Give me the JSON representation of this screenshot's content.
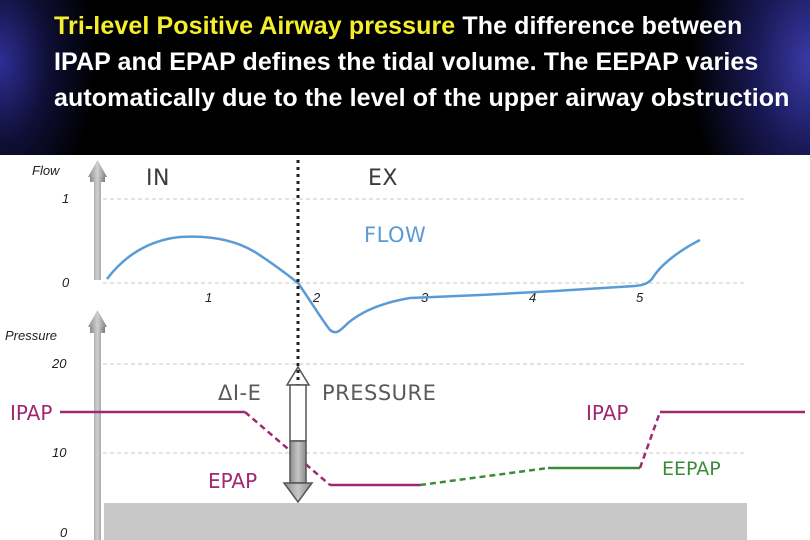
{
  "slide": {
    "title_highlight": "Tri-level Positive Airway pressure",
    "title_rest": " The difference between IPAP and EPAP defines the tidal volume. The EEPAP varies automatically due to the level of the upper airway obstruction"
  },
  "figure": {
    "flow_axis_label": "Flow",
    "pressure_axis_label": "Pressure",
    "phase_in": "IN",
    "phase_ex": "EX",
    "flow_curve_label": "FLOW",
    "pressure_curve_label": "PRESSURE",
    "delta_label": "ΔI-E",
    "ipap_left": "IPAP",
    "ipap_right": "IPAP",
    "epap_label": "EPAP",
    "eepap_label": "EEPAP",
    "flow_ticks": [
      "1",
      "0"
    ],
    "pressure_ticks": [
      "20",
      "10",
      "0"
    ],
    "time_ticks": [
      "1",
      "2",
      "3",
      "4",
      "5"
    ],
    "colors": {
      "flow": "#5b9bd5",
      "ipap": "#a02870",
      "epap": "#a02870",
      "eepap": "#3a8c3a",
      "baseline_fill": "#c8c8c8",
      "title_highlight": "#f5ee2a"
    }
  }
}
